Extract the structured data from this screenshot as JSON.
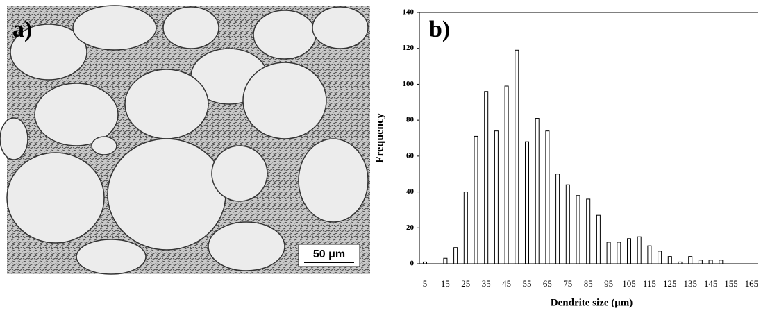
{
  "panel_a": {
    "label": "a)",
    "scale_bar": "50 μm"
  },
  "chart_data": {
    "type": "bar",
    "panel_label": "b)",
    "x_label": "Dendrite size  (μm)",
    "y_label": "Frequency",
    "categories": [
      "5",
      null,
      "15",
      null,
      "25",
      null,
      "35",
      null,
      "45",
      null,
      "55",
      null,
      "65",
      null,
      "75",
      null,
      "85",
      null,
      "95",
      null,
      "105",
      null,
      "115",
      null,
      "125",
      null,
      "135",
      null,
      "145",
      null,
      "155",
      null,
      "165"
    ],
    "values": [
      1,
      0,
      3,
      9,
      40,
      71,
      96,
      74,
      99,
      119,
      68,
      81,
      74,
      50,
      44,
      38,
      36,
      27,
      12,
      12,
      14,
      15,
      10,
      7,
      4,
      1,
      4,
      2,
      2,
      2,
      0,
      0,
      0
    ],
    "color": "#ffffff",
    "ylim": [
      0,
      140
    ],
    "yticks": [
      0,
      20,
      40,
      60,
      80,
      100,
      120,
      140
    ],
    "grid": false
  }
}
